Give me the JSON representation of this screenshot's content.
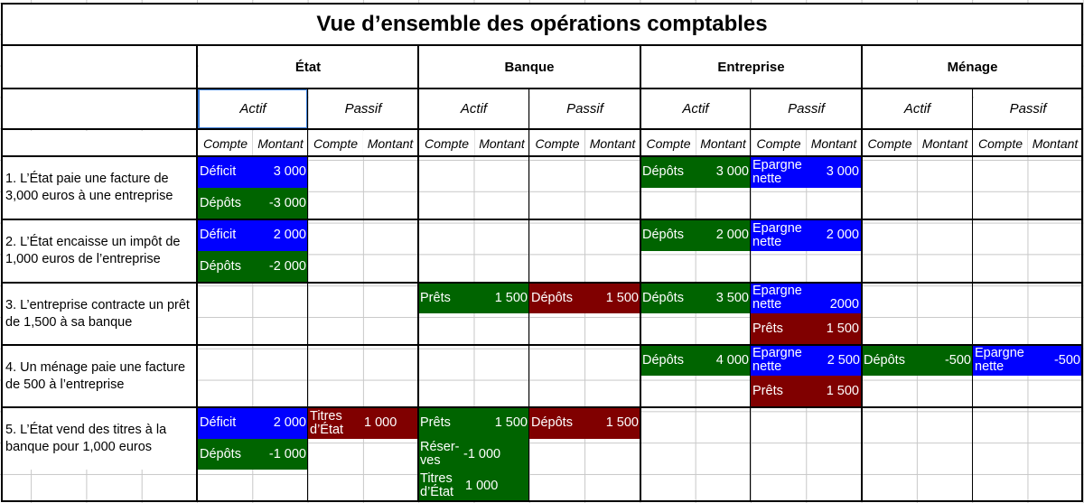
{
  "title": "Vue d’ensemble des opérations comptables",
  "entities": [
    {
      "name": "État",
      "actif": "Actif",
      "passif": "Passif",
      "col_compte": "Compte",
      "col_montant": "Montant",
      "col_compte2": "Compte",
      "col_montant2": "Montant"
    },
    {
      "name": "Banque",
      "actif": "Actif",
      "passif": "Passif",
      "col_compte": "Compte",
      "col_montant": "Montant",
      "col_compte2": "Compte",
      "col_montant2": "Montant"
    },
    {
      "name": "Entreprise",
      "actif": "Actif",
      "passif": "Passif",
      "col_compte": "Compte",
      "col_montant": "Montant",
      "col_compte2": "Compte",
      "col_montant2": "Montant"
    },
    {
      "name": "Ménage",
      "actif": "Actif",
      "passif": "Passif",
      "col_compte": "Compte",
      "col_montant": "Montant",
      "col_compte2": "Compte",
      "col_montant2": "Montant"
    }
  ],
  "operations": [
    "1. L’État paie une facture de 3,000 euros à une entreprise",
    "2. L’État encaisse un impôt de 1,000 euros de l’entreprise",
    "3. L’entreprise contracte un prêt de 1,500 à sa banque",
    "4. Un ménage paie une facture de 500 à l’entreprise",
    "5. L’État vend des titres à la banque pour 1,000 euros"
  ],
  "entries": {
    "e1": {
      "account": "Déficit",
      "amount": "3 000",
      "color": "#0000ff"
    },
    "e2": {
      "account": "Dépôts",
      "amount": "-3 000",
      "color": "#006400"
    },
    "e3": {
      "account": "Dépôts",
      "amount": "3 000",
      "color": "#006400"
    },
    "e4": {
      "account": "Epargne nette",
      "amount": "3 000",
      "color": "#0000ff"
    },
    "e5": {
      "account": "Déficit",
      "amount": "2 000",
      "color": "#0000ff"
    },
    "e6": {
      "account": "Dépôts",
      "amount": "-2 000",
      "color": "#006400"
    },
    "e7": {
      "account": "Dépôts",
      "amount": "2 000",
      "color": "#006400"
    },
    "e8": {
      "account": "Epargne nette",
      "amount": "2 000",
      "color": "#0000ff"
    },
    "e9": {
      "account": "Prêts",
      "amount": "1 500",
      "color": "#006400"
    },
    "e10": {
      "account": "Dépôts",
      "amount": "1 500",
      "color": "#800000"
    },
    "e11": {
      "account": "Dépôts",
      "amount": "3 500",
      "color": "#006400"
    },
    "e12": {
      "account": "Epargne nette",
      "amount": "2000",
      "color": "#0000ff"
    },
    "e13": {
      "account": "Prêts",
      "amount": "1 500",
      "color": "#800000"
    },
    "e14": {
      "account": "Dépôts",
      "amount": "4 000",
      "color": "#006400"
    },
    "e15": {
      "account": "Epargne nette",
      "amount": "2 500",
      "color": "#0000ff"
    },
    "e16": {
      "account": "Dépôts",
      "amount": "-500",
      "color": "#006400"
    },
    "e17": {
      "account": "Epargne nette",
      "amount": "-500",
      "color": "#0000ff"
    },
    "e18": {
      "account": "Prêts",
      "amount": "1 500",
      "color": "#800000"
    },
    "e19": {
      "account": "Déficit",
      "amount": "2 000",
      "color": "#0000ff"
    },
    "e20": {
      "account": "Titres d’État",
      "amount": "1 000",
      "color": "#800000"
    },
    "e21": {
      "account": "Prêts",
      "amount": "1 500",
      "color": "#006400"
    },
    "e22": {
      "account": "Dépôts",
      "amount": "1 500",
      "color": "#800000"
    },
    "e23": {
      "account": "Dépôts",
      "amount": "-1 000",
      "color": "#006400"
    },
    "e24": {
      "account": "Réser-ves",
      "amount": "-1 000",
      "color": "#006400"
    },
    "e25": {
      "account": "Titres d’État",
      "amount": "1 000",
      "color": "#006400"
    }
  }
}
